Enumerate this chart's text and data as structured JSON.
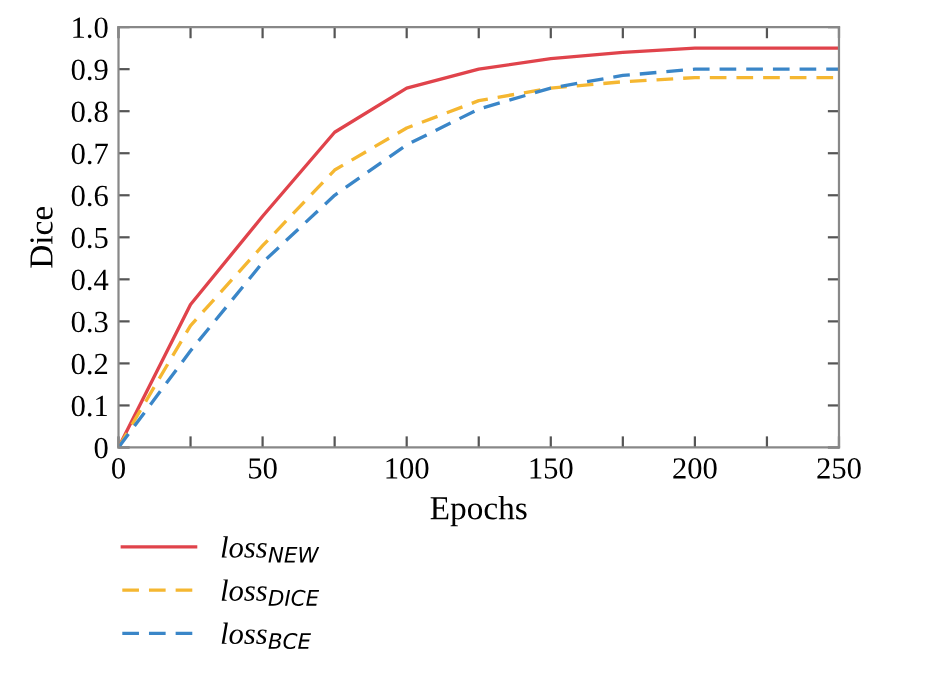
{
  "chart_data": {
    "type": "line",
    "xlabel": "Epochs",
    "ylabel": "Dice",
    "x": [
      0,
      25,
      50,
      75,
      100,
      125,
      150,
      175,
      200,
      225,
      250
    ],
    "series": [
      {
        "name": "loss$_{NEW}$",
        "color": "#e0434b",
        "line_style": "solid",
        "values": [
          0,
          0.34,
          0.55,
          0.75,
          0.855,
          0.9,
          0.925,
          0.94,
          0.95,
          0.95,
          0.95
        ]
      },
      {
        "name": "loss$_{DICE}$",
        "color": "#f5b731",
        "line_style": "dashed",
        "values": [
          0,
          0.29,
          0.48,
          0.66,
          0.76,
          0.825,
          0.855,
          0.87,
          0.88,
          0.88,
          0.88
        ]
      },
      {
        "name": "loss$_{BCE}$",
        "color": "#3a86c8",
        "line_style": "dashed",
        "values": [
          0,
          0.23,
          0.44,
          0.6,
          0.72,
          0.805,
          0.855,
          0.885,
          0.9,
          0.9,
          0.9
        ]
      }
    ],
    "xlim": [
      0,
      250
    ],
    "ylim": [
      0,
      1.0
    ],
    "xticks": [
      0,
      {
        "value": 25,
        "label": null
      },
      50,
      {
        "value": 75,
        "label": null
      },
      100,
      {
        "value": 125,
        "label": null
      },
      150,
      {
        "value": 175,
        "label": null
      },
      200,
      {
        "value": 225,
        "label": null
      },
      250
    ],
    "yticks": [
      0,
      0.1,
      0.2,
      0.3,
      0.4,
      0.5,
      0.6,
      0.7,
      0.8,
      0.9,
      {
        "value": 1.0,
        "label": "1.0"
      }
    ],
    "legend": "bottom left",
    "grid": false,
    "marker": "none"
  }
}
